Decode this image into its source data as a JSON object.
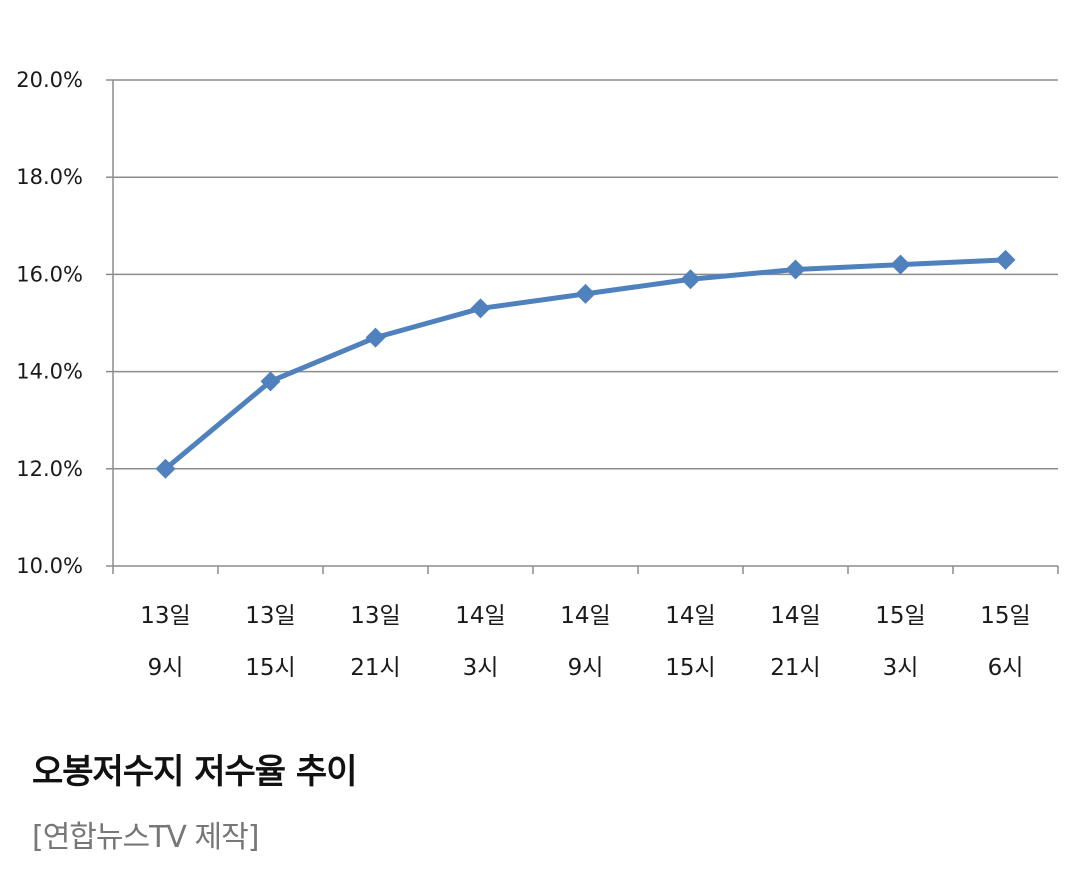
{
  "chart_data": {
    "type": "line",
    "categories": [
      [
        "13일",
        "9시"
      ],
      [
        "13일",
        "15시"
      ],
      [
        "13일",
        "21시"
      ],
      [
        "14일",
        "3시"
      ],
      [
        "14일",
        "9시"
      ],
      [
        "14일",
        "15시"
      ],
      [
        "14일",
        "21시"
      ],
      [
        "15일",
        "3시"
      ],
      [
        "15일",
        "6시"
      ]
    ],
    "series": [
      {
        "values": [
          12.0,
          13.8,
          14.7,
          15.3,
          15.6,
          15.9,
          16.1,
          16.2,
          16.3
        ],
        "color": "#4f81bd",
        "marker": "diamond"
      }
    ],
    "ylim": [
      10.0,
      20.0
    ],
    "yticks": [
      10.0,
      12.0,
      14.0,
      16.0,
      18.0,
      20.0
    ],
    "ytick_labels": [
      "10.0%",
      "12.0%",
      "14.0%",
      "16.0%",
      "18.0%",
      "20.0%"
    ],
    "grid": true,
    "legend": "none",
    "colors": {
      "grid": "#8c8c8c",
      "axis": "#8c8c8c"
    }
  },
  "caption": {
    "title": "오봉저수지 저수율 추이",
    "credit": "[연합뉴스TV 제작]"
  }
}
